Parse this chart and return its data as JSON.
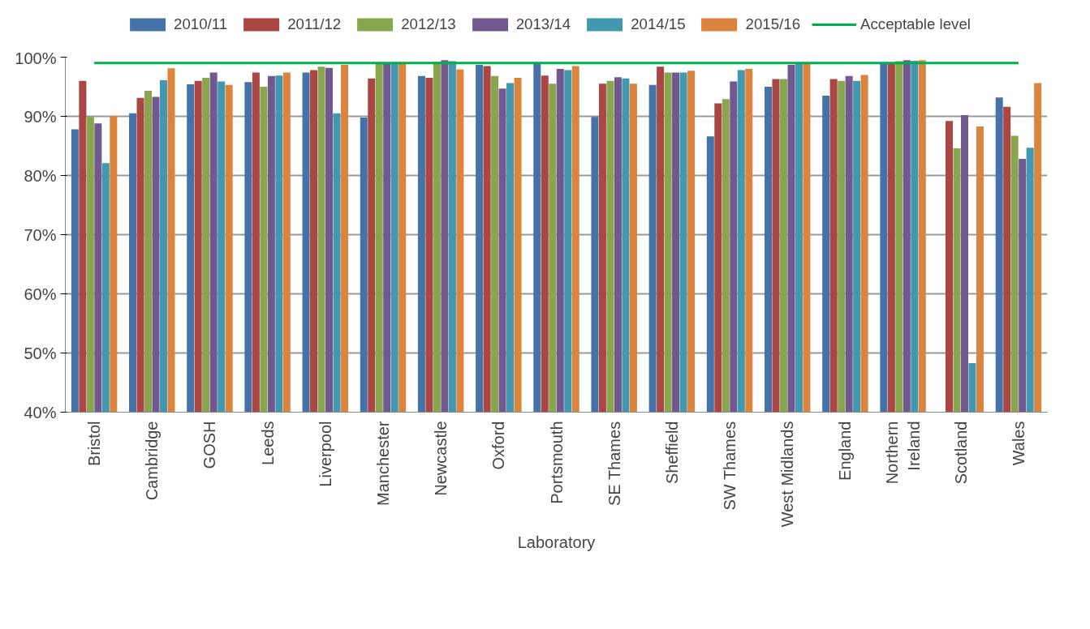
{
  "chart_data": {
    "type": "bar",
    "xlabel": "Laboratory",
    "categories": [
      "Bristol",
      "Cambridge",
      "GOSH",
      "Leeds",
      "Liverpool",
      "Manchester",
      "Newcastle",
      "Oxford",
      "Portsmouth",
      "SE Thames",
      "Sheffield",
      "SW Thames",
      "West Midlands",
      "England",
      "Northern\nIreland",
      "Scotland",
      "Wales"
    ],
    "series": [
      {
        "name": "2010/11",
        "color": "#4572a7",
        "values": [
          87.8,
          90.5,
          95.4,
          95.8,
          97.4,
          89.8,
          96.8,
          98.7,
          99.0,
          89.9,
          95.3,
          86.6,
          95.0,
          93.5,
          98.9,
          40.0,
          93.2
        ]
      },
      {
        "name": "2011/12",
        "color": "#aa4643",
        "values": [
          96.0,
          93.1,
          96.0,
          97.4,
          97.8,
          96.4,
          96.5,
          98.5,
          96.9,
          95.5,
          98.4,
          92.2,
          96.3,
          96.3,
          99.0,
          89.2,
          91.6
        ]
      },
      {
        "name": "2012/13",
        "color": "#89a54e",
        "values": [
          89.9,
          94.3,
          96.5,
          95.0,
          98.4,
          99.0,
          99.2,
          96.8,
          95.5,
          96.0,
          97.4,
          92.9,
          96.3,
          96.0,
          99.3,
          84.6,
          86.7
        ]
      },
      {
        "name": "2013/14",
        "color": "#71588f",
        "values": [
          88.8,
          93.3,
          97.4,
          96.8,
          98.2,
          99.0,
          99.5,
          94.7,
          98.0,
          96.6,
          97.4,
          95.9,
          98.7,
          96.8,
          99.5,
          90.2,
          82.8
        ]
      },
      {
        "name": "2014/15",
        "color": "#4198af",
        "values": [
          82.1,
          96.1,
          95.9,
          96.9,
          90.5,
          99.0,
          99.3,
          95.6,
          97.8,
          96.4,
          97.4,
          97.8,
          99.0,
          96.0,
          99.4,
          48.3,
          84.7
        ]
      },
      {
        "name": "2015/16",
        "color": "#db843d",
        "values": [
          90.0,
          98.1,
          95.3,
          97.4,
          98.7,
          99.0,
          97.9,
          96.5,
          98.5,
          95.5,
          97.7,
          98.0,
          99.1,
          97.0,
          99.5,
          88.3,
          95.6
        ]
      },
      {
        "name": "Acceptable level",
        "type": "line",
        "color": "#00b050",
        "values": [
          99,
          99,
          99,
          99,
          99,
          99,
          99,
          99,
          99,
          99,
          99,
          99,
          99,
          99,
          99,
          99,
          99
        ]
      }
    ],
    "ylim": [
      40,
      100
    ],
    "yticks": [
      {
        "value": 40,
        "label": "40%"
      },
      {
        "value": 50,
        "label": "50%"
      },
      {
        "value": 60,
        "label": "60%"
      },
      {
        "value": 70,
        "label": "70%"
      },
      {
        "value": 80,
        "label": "80%"
      },
      {
        "value": 90,
        "label": "90%"
      },
      {
        "value": 100,
        "label": "100%"
      }
    ],
    "grid": "y",
    "legend": "top"
  }
}
